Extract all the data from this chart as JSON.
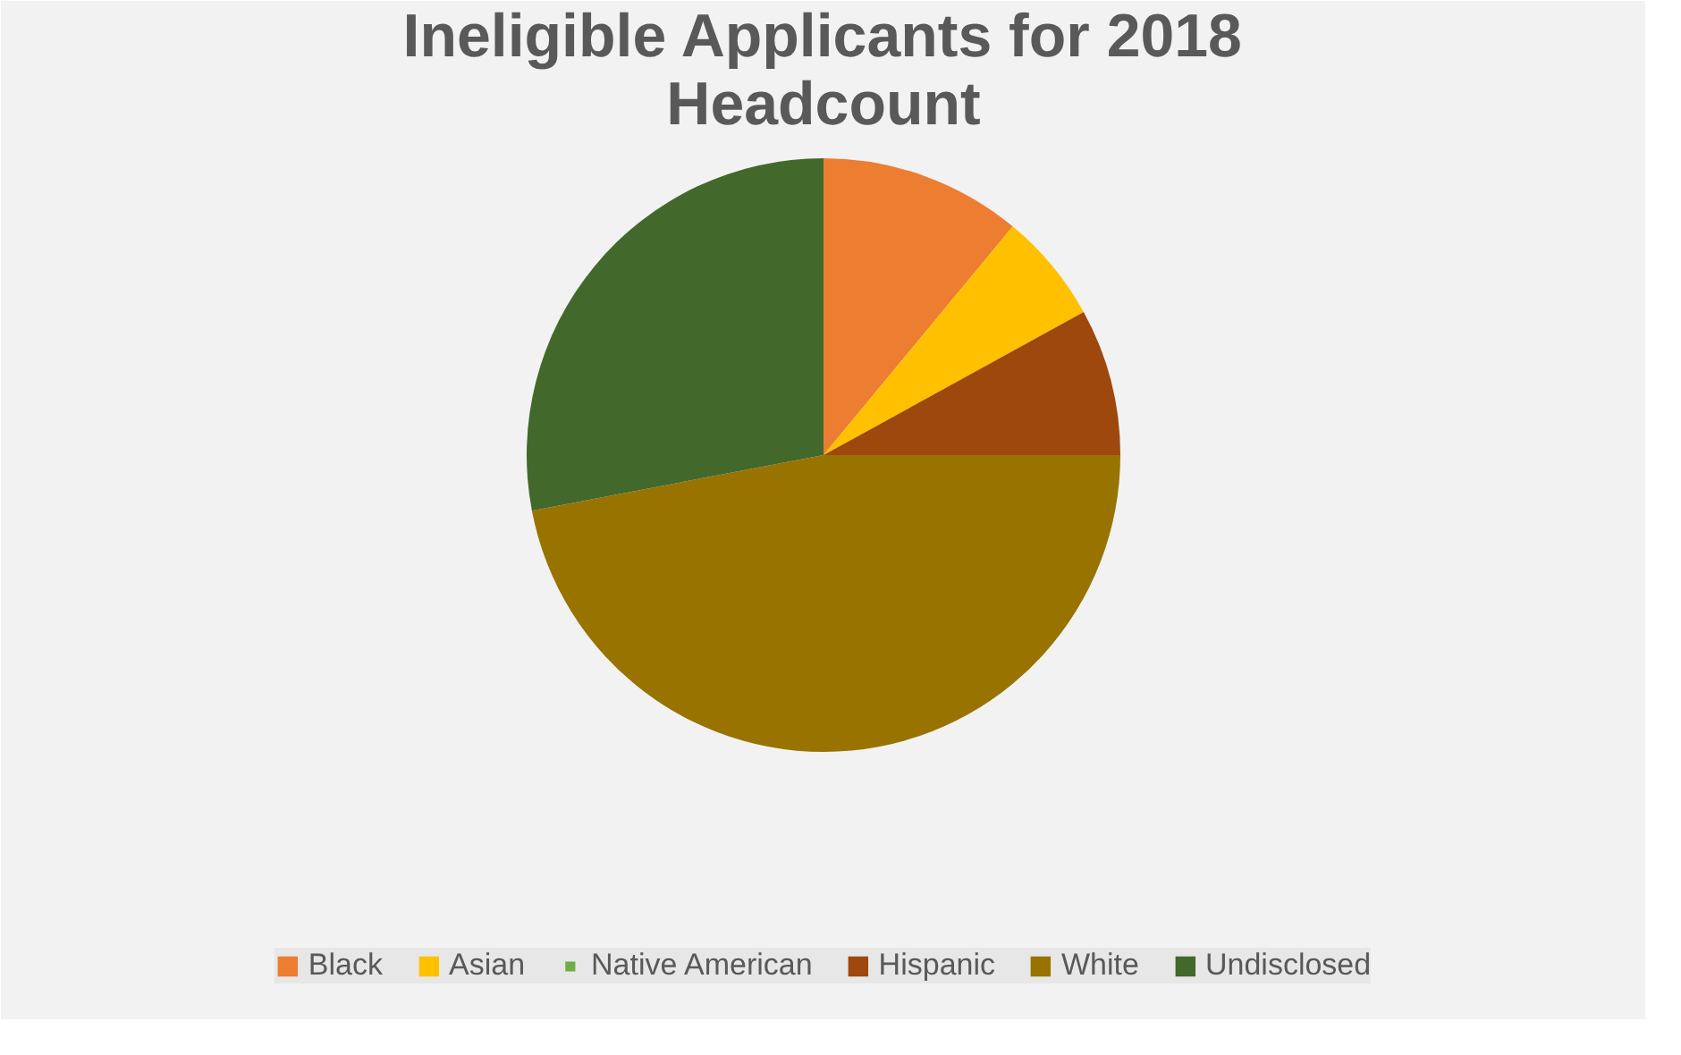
{
  "chart_data": {
    "type": "pie",
    "title": "Ineligible Applicants for 2018 Headcount",
    "categories": [
      "Black",
      "Asian",
      "Native American",
      "Hispanic",
      "White",
      "Undisclosed"
    ],
    "values": [
      11,
      6,
      0,
      8,
      47,
      28
    ],
    "colors": [
      "#ed7d31",
      "#ffc000",
      "#70ad47",
      "#9e480e",
      "#997300",
      "#43682b"
    ],
    "legend": "bottom"
  }
}
